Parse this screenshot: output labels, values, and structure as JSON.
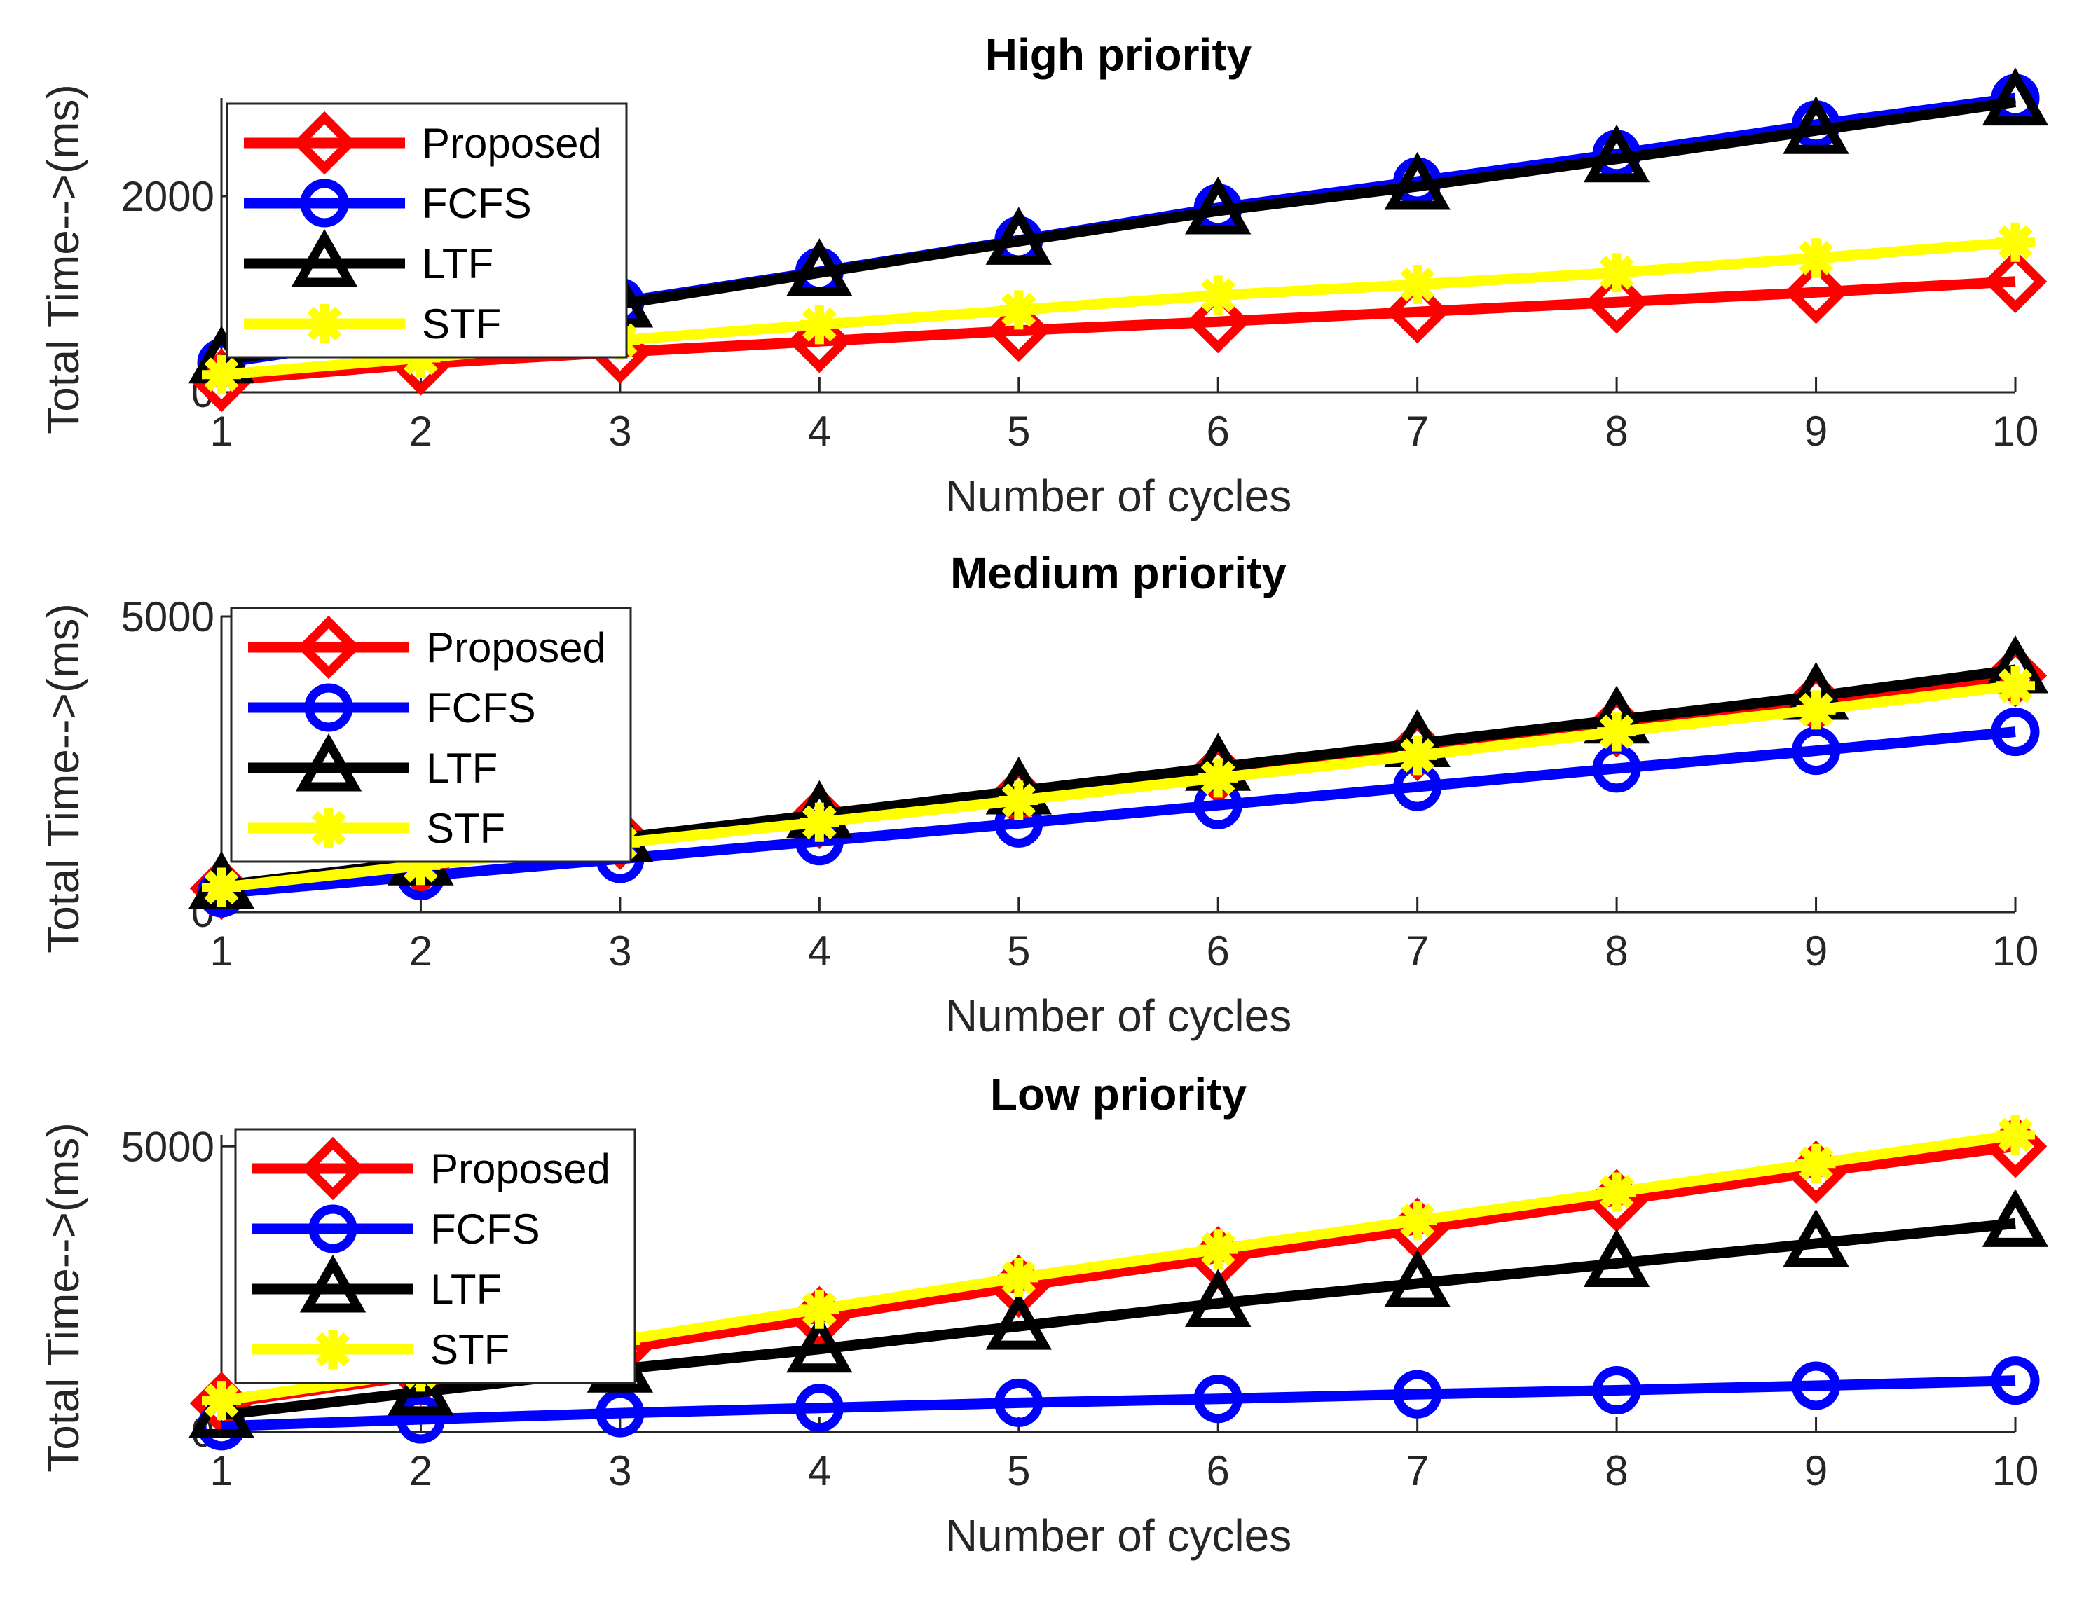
{
  "chart_data": [
    {
      "type": "line",
      "title": "High priority",
      "xlabel": "Number of cycles",
      "ylabel": "Total Time-->(ms)",
      "x": [
        1,
        2,
        3,
        4,
        5,
        6,
        7,
        8,
        9,
        10
      ],
      "xlim": [
        1,
        10
      ],
      "ylim": [
        0,
        3000
      ],
      "yticks": [
        0,
        2000
      ],
      "legend_position": "top-left",
      "grid": false,
      "series": [
        {
          "name": "Proposed",
          "color": "#ff0000",
          "marker": "diamond",
          "values": [
            120,
            290,
            410,
            520,
            630,
            720,
            820,
            920,
            1020,
            1130
          ]
        },
        {
          "name": "FCFS",
          "color": "#0000ff",
          "marker": "circle",
          "values": [
            300,
            600,
            920,
            1230,
            1550,
            1880,
            2150,
            2430,
            2730,
            3000
          ]
        },
        {
          "name": "LTF",
          "color": "#000000",
          "marker": "triangle",
          "values": [
            330,
            600,
            900,
            1220,
            1540,
            1850,
            2100,
            2380,
            2670,
            2960
          ]
        },
        {
          "name": "STF",
          "color": "#ffff00",
          "marker": "asterisk",
          "values": [
            180,
            350,
            530,
            690,
            840,
            990,
            1100,
            1220,
            1370,
            1530
          ]
        }
      ]
    },
    {
      "type": "line",
      "title": "Medium priority",
      "xlabel": "Number of cycles",
      "ylabel": "Total Time-->(ms)",
      "x": [
        1,
        2,
        3,
        4,
        5,
        6,
        7,
        8,
        9,
        10
      ],
      "xlim": [
        1,
        10
      ],
      "ylim": [
        0,
        5000
      ],
      "yticks": [
        0,
        5000
      ],
      "legend_position": "top-left",
      "grid": false,
      "series": [
        {
          "name": "Proposed",
          "color": "#ff0000",
          "marker": "diamond",
          "values": [
            400,
            800,
            1250,
            1600,
            1950,
            2350,
            2750,
            3150,
            3550,
            4000
          ]
        },
        {
          "name": "FCFS",
          "color": "#0000ff",
          "marker": "circle",
          "values": [
            320,
            610,
            900,
            1200,
            1500,
            1810,
            2120,
            2430,
            2730,
            3050
          ]
        },
        {
          "name": "LTF",
          "color": "#000000",
          "marker": "triangle",
          "values": [
            450,
            850,
            1250,
            1650,
            2050,
            2450,
            2850,
            3250,
            3650,
            4100
          ]
        },
        {
          "name": "STF",
          "color": "#ffff00",
          "marker": "asterisk",
          "values": [
            420,
            790,
            1170,
            1520,
            1890,
            2270,
            2650,
            3050,
            3420,
            3830
          ]
        }
      ]
    },
    {
      "type": "line",
      "title": "Low priority",
      "xlabel": "Number of cycles",
      "ylabel": "Total Time-->(ms)",
      "x": [
        1,
        2,
        3,
        4,
        5,
        6,
        7,
        8,
        9,
        10
      ],
      "xlim": [
        1,
        10
      ],
      "ylim": [
        0,
        5200
      ],
      "yticks": [
        0,
        5000
      ],
      "legend_position": "top-left",
      "grid": false,
      "series": [
        {
          "name": "Proposed",
          "color": "#ff0000",
          "marker": "diamond",
          "values": [
            500,
            1000,
            1450,
            2000,
            2550,
            3050,
            3550,
            4050,
            4550,
            5000
          ]
        },
        {
          "name": "FCFS",
          "color": "#0000ff",
          "marker": "circle",
          "values": [
            100,
            220,
            330,
            420,
            510,
            580,
            660,
            730,
            810,
            900
          ]
        },
        {
          "name": "LTF",
          "color": "#000000",
          "marker": "triangle",
          "values": [
            300,
            700,
            1100,
            1450,
            1850,
            2250,
            2600,
            2950,
            3300,
            3650
          ]
        },
        {
          "name": "STF",
          "color": "#ffff00",
          "marker": "asterisk",
          "values": [
            550,
            1050,
            1600,
            2150,
            2700,
            3200,
            3700,
            4200,
            4700,
            5200
          ]
        }
      ]
    }
  ]
}
